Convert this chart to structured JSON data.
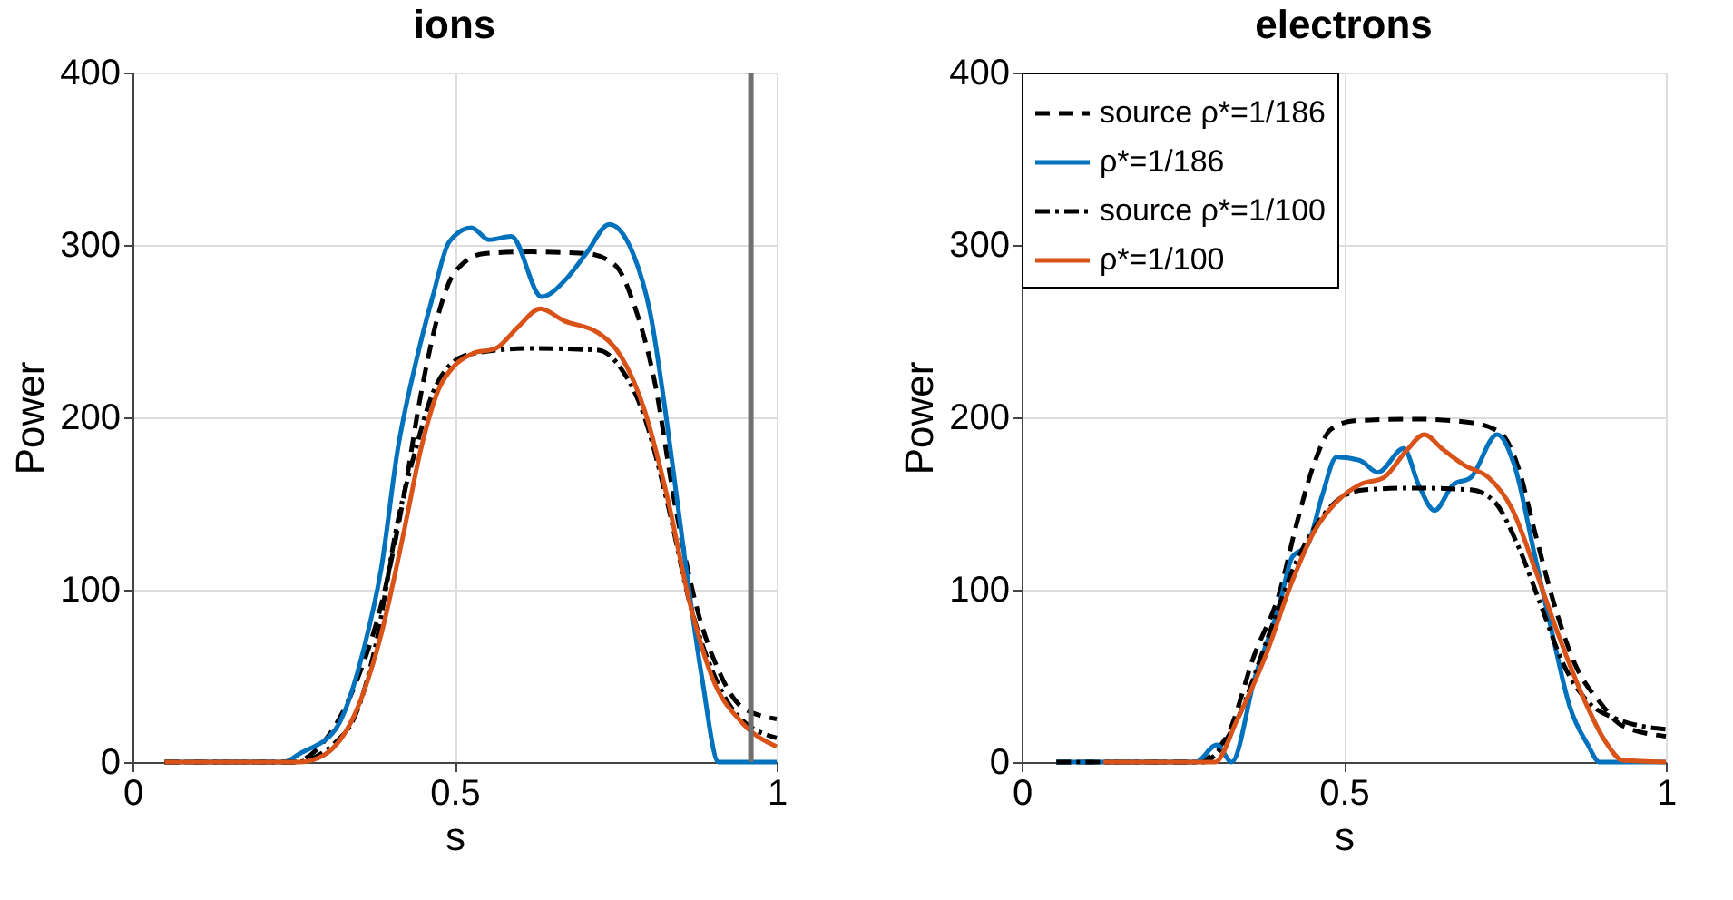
{
  "chart_data": [
    {
      "type": "line",
      "title": "ions",
      "xlabel": "s",
      "ylabel": "Power",
      "xlim": [
        0,
        1
      ],
      "ylim": [
        0,
        400
      ],
      "xticks": [
        0,
        0.5,
        1
      ],
      "yticks": [
        0,
        100,
        200,
        300,
        400
      ],
      "grid": true,
      "legend": false,
      "ref_lines": [
        {
          "axis": "x",
          "value": 0.96,
          "color": "#707070"
        }
      ],
      "series": [
        {
          "color": "#000000",
          "line_style": "dashed",
          "x": [
            0.05,
            0.25,
            0.288,
            0.35,
            0.386,
            0.421,
            0.448,
            0.475,
            0.5,
            0.546,
            0.617,
            0.706,
            0.75,
            0.777,
            0.812,
            0.84,
            0.875,
            0.91,
            0.946,
            1
          ],
          "values": [
            0,
            0,
            8,
            49,
            91,
            154,
            214,
            260,
            284,
            295,
            296,
            295,
            288,
            267,
            218,
            154,
            91,
            53,
            32,
            25
          ]
        },
        {
          "color": "#0072bd",
          "line_style": "solid",
          "x": [
            0.05,
            0.235,
            0.26,
            0.315,
            0.36,
            0.386,
            0.412,
            0.44,
            0.466,
            0.492,
            0.526,
            0.554,
            0.588,
            0.635,
            0.675,
            0.706,
            0.74,
            0.777,
            0.804,
            0.83,
            0.857,
            0.884,
            0.91,
            1
          ],
          "values": [
            0,
            0,
            5,
            19,
            67,
            112,
            182,
            232,
            270,
            302,
            310,
            303,
            305,
            270,
            281,
            296,
            312,
            295,
            260,
            196,
            119,
            49,
            0,
            0
          ]
        },
        {
          "color": "#000000",
          "line_style": "dashdot",
          "x": [
            0.05,
            0.25,
            0.332,
            0.377,
            0.412,
            0.44,
            0.466,
            0.492,
            0.528,
            0.617,
            0.723,
            0.759,
            0.795,
            0.83,
            0.866,
            0.9,
            0.937,
            1
          ],
          "values": [
            0,
            0,
            18,
            67,
            140,
            182,
            214,
            230,
            237,
            240,
            239,
            228,
            200,
            151,
            91,
            53,
            28,
            14
          ]
        },
        {
          "color": "#d95319",
          "line_style": "solid",
          "x": [
            0.05,
            0.26,
            0.297,
            0.35,
            0.386,
            0.421,
            0.448,
            0.475,
            0.5,
            0.528,
            0.564,
            0.6,
            0.633,
            0.67,
            0.723,
            0.759,
            0.795,
            0.83,
            0.866,
            0.9,
            0.946,
            1
          ],
          "values": [
            0,
            0,
            4,
            32,
            74,
            133,
            182,
            216,
            230,
            237,
            240,
            253,
            263,
            256,
            249,
            235,
            204,
            154,
            91,
            49,
            23,
            9
          ]
        }
      ]
    },
    {
      "type": "line",
      "title": "electrons",
      "xlabel": "s",
      "ylabel": "Power",
      "xlim": [
        0,
        1
      ],
      "ylim": [
        0,
        400
      ],
      "xticks": [
        0,
        0.5,
        1
      ],
      "yticks": [
        0,
        100,
        200,
        300,
        400
      ],
      "grid": true,
      "legend": "top left",
      "series": [
        {
          "name": "source ρ*=1/186",
          "color": "#000000",
          "line_style": "dashed",
          "x": [
            0.054,
            0.27,
            0.317,
            0.362,
            0.4,
            0.426,
            0.453,
            0.48,
            0.516,
            0.607,
            0.697,
            0.743,
            0.77,
            0.797,
            0.824,
            0.86,
            0.897,
            0.933,
            1
          ],
          "values": [
            0,
            0,
            14,
            63,
            98,
            137,
            172,
            193,
            198,
            199,
            197,
            191,
            172,
            133,
            95,
            56,
            35,
            21,
            15
          ]
        },
        {
          "name": "ρ*=1/186",
          "color": "#0072bd",
          "line_style": "solid",
          "x": [
            0.054,
            0.27,
            0.303,
            0.326,
            0.362,
            0.4,
            0.42,
            0.444,
            0.466,
            0.489,
            0.525,
            0.553,
            0.593,
            0.616,
            0.641,
            0.67,
            0.697,
            0.738,
            0.765,
            0.797,
            0.824,
            0.851,
            0.879,
            0.897,
            1
          ],
          "values": [
            0,
            0,
            10,
            0,
            49,
            91,
            119,
            126,
            154,
            177,
            175,
            168,
            182,
            161,
            146,
            161,
            165,
            190,
            172,
            119,
            74,
            32,
            10,
            0,
            0
          ]
        },
        {
          "name": "source ρ*=1/100",
          "color": "#000000",
          "line_style": "dashdot",
          "x": [
            0.054,
            0.28,
            0.335,
            0.38,
            0.426,
            0.462,
            0.498,
            0.534,
            0.607,
            0.697,
            0.734,
            0.77,
            0.806,
            0.842,
            0.879,
            0.924,
            1
          ],
          "values": [
            0,
            0,
            25,
            70,
            116,
            140,
            154,
            158,
            159,
            158,
            151,
            126,
            91,
            56,
            35,
            25,
            19
          ]
        },
        {
          "name": "ρ*=1/100",
          "color": "#d95319",
          "line_style": "solid",
          "x": [
            0.127,
            0.3,
            0.335,
            0.38,
            0.417,
            0.453,
            0.489,
            0.525,
            0.562,
            0.598,
            0.625,
            0.652,
            0.688,
            0.725,
            0.761,
            0.797,
            0.833,
            0.87,
            0.906,
            0.933,
            1
          ],
          "values": [
            0,
            0,
            25,
            63,
            102,
            133,
            151,
            161,
            165,
            181,
            190,
            182,
            172,
            165,
            147,
            112,
            74,
            39,
            12,
            1,
            0
          ]
        }
      ]
    }
  ]
}
